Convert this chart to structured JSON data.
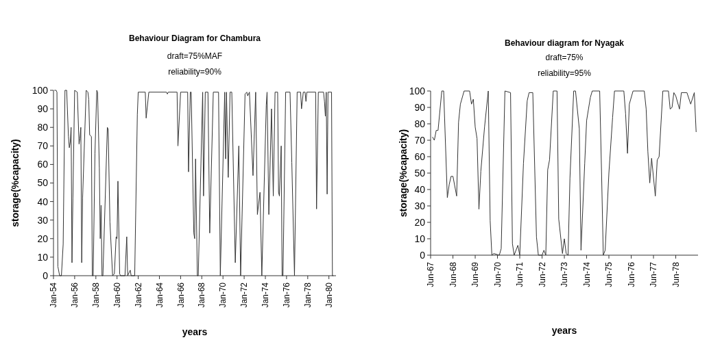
{
  "chart_data": [
    {
      "type": "line",
      "title": "Behaviour Diagram for Chambura",
      "subtitle": "draft=75%MAF\nreliability=90%",
      "xlabel": "years",
      "ylabel": "storage(%capacity)",
      "color": "#333333",
      "grid": false,
      "xlim": [
        "1954-01",
        "1980-09"
      ],
      "ylim": [
        0,
        100
      ],
      "yticks": [
        0,
        10,
        20,
        30,
        40,
        50,
        60,
        70,
        80,
        90,
        100
      ],
      "xticks": [
        {
          "value": "1954-01",
          "label": "Jan-54"
        },
        {
          "value": "1956-01",
          "label": "Jan-56"
        },
        {
          "value": "1958-01",
          "label": "Jan-58"
        },
        {
          "value": "1960-01",
          "label": "Jan-60"
        },
        {
          "value": "1962-01",
          "label": "Jan-62"
        },
        {
          "value": "1964-01",
          "label": "Jan-64"
        },
        {
          "value": "1966-01",
          "label": "Jan-66"
        },
        {
          "value": "1968-01",
          "label": "Jan-68"
        },
        {
          "value": "1970-01",
          "label": "Jan-70"
        },
        {
          "value": "1972-01",
          "label": "Jan-72"
        },
        {
          "value": "1974-01",
          "label": "Jan-74"
        },
        {
          "value": "1976-01",
          "label": "Jan-76"
        },
        {
          "value": "1978-01",
          "label": "Jan-78"
        },
        {
          "value": "1980-01",
          "label": "Jan-80"
        }
      ],
      "x": [
        "1954-02",
        "1954-04",
        "1954-05",
        "1954-06",
        "1954-08",
        "1954-10",
        "1954-12",
        "1955-02",
        "1955-04",
        "1955-06",
        "1955-07",
        "1955-08",
        "1955-09",
        "1955-10",
        "1955-11",
        "1956-01",
        "1956-04",
        "1956-06",
        "1956-07",
        "1956-08",
        "1956-09",
        "1956-10",
        "1957-02",
        "1957-04",
        "1957-05",
        "1957-06",
        "1957-08",
        "1957-09",
        "1957-10",
        "1957-12",
        "1958-02",
        "1958-03",
        "1958-05",
        "1958-06",
        "1958-07",
        "1958-08",
        "1958-09",
        "1959-02",
        "1959-03",
        "1959-05",
        "1959-08",
        "1959-10",
        "1959-12",
        "1960-01",
        "1960-02",
        "1960-04",
        "1960-05",
        "1960-10",
        "1960-12",
        "1961-01",
        "1961-04",
        "1961-05",
        "1961-09",
        "1961-12",
        "1962-01",
        "1962-09",
        "1962-10",
        "1963-01",
        "1964-09",
        "1964-10",
        "1964-11",
        "1965-09",
        "1965-10",
        "1966-01",
        "1966-09",
        "1966-10",
        "1966-12",
        "1967-01",
        "1967-04",
        "1967-05",
        "1967-06",
        "1967-08",
        "1967-09",
        "1968-02",
        "1968-03",
        "1968-05",
        "1968-08",
        "1968-10",
        "1969-02",
        "1969-08",
        "1969-10",
        "1970-03",
        "1970-04",
        "1970-05",
        "1970-07",
        "1970-09",
        "1970-11",
        "1971-03",
        "1971-07",
        "1971-09",
        "1972-02",
        "1972-04",
        "1972-05",
        "1972-07",
        "1972-11",
        "1973-02",
        "1973-04",
        "1973-07",
        "1973-09",
        "1974-02",
        "1974-03",
        "1974-05",
        "1974-08",
        "1974-10",
        "1974-12",
        "1975-03",
        "1975-04",
        "1975-05",
        "1975-07",
        "1975-08",
        "1975-09",
        "1975-12",
        "1976-05",
        "1976-07",
        "1976-10",
        "1977-01",
        "1977-05",
        "1977-06",
        "1977-08",
        "1977-10",
        "1977-11",
        "1977-12",
        "1978-10",
        "1978-11",
        "1979-01",
        "1979-07",
        "1979-08",
        "1979-09",
        "1979-10",
        "1979-11",
        "1979-12",
        "1980-04",
        "1980-05",
        "1980-06"
      ],
      "values": [
        100,
        100,
        99,
        5,
        0,
        0,
        17,
        100,
        100,
        75,
        69,
        72,
        80,
        7,
        42,
        100,
        99,
        71,
        74,
        80,
        7,
        42,
        100,
        99,
        95,
        76,
        75,
        0,
        0,
        66,
        100,
        99,
        58,
        20,
        38,
        0,
        0,
        80,
        79,
        29,
        0,
        1,
        21,
        20,
        51,
        1,
        0,
        0,
        21,
        0,
        3,
        0,
        0,
        87,
        99,
        99,
        85,
        99,
        99,
        98,
        99,
        99,
        70,
        99,
        99,
        56,
        99,
        99,
        23,
        20,
        63,
        0,
        0,
        99,
        43,
        99,
        99,
        23,
        99,
        99,
        0,
        99,
        63,
        99,
        53,
        99,
        99,
        7,
        70,
        0,
        98,
        99,
        97,
        99,
        54,
        99,
        33,
        45,
        0,
        92,
        99,
        33,
        90,
        43,
        99,
        99,
        45,
        43,
        70,
        0,
        0,
        99,
        99,
        61,
        0,
        99,
        99,
        90,
        99,
        99,
        94,
        99,
        99,
        36,
        99,
        99,
        94,
        86,
        99,
        44,
        99,
        99,
        0,
        0
      ]
    },
    {
      "type": "line",
      "title": "Behaviour diagram for Nyagak",
      "subtitle": "draft=75%\nreliability=95%",
      "xlabel": "years",
      "ylabel": "storage(%capacity)",
      "color": "#333333",
      "grid": false,
      "xlim": [
        "1967-06",
        "1979-06"
      ],
      "ylim": [
        0,
        100
      ],
      "yticks": [
        0,
        10,
        20,
        30,
        40,
        50,
        60,
        70,
        80,
        90,
        100
      ],
      "xticks": [
        {
          "value": "1967-06",
          "label": "Jun-67"
        },
        {
          "value": "1968-06",
          "label": "Jun-68"
        },
        {
          "value": "1969-06",
          "label": "Jun-69"
        },
        {
          "value": "1970-06",
          "label": "Jun-70"
        },
        {
          "value": "1971-06",
          "label": "Jun-71"
        },
        {
          "value": "1972-06",
          "label": "Jun-72"
        },
        {
          "value": "1973-06",
          "label": "Jun-73"
        },
        {
          "value": "1974-06",
          "label": "Jun-74"
        },
        {
          "value": "1975-06",
          "label": "Jun-75"
        },
        {
          "value": "1976-06",
          "label": "Jun-76"
        },
        {
          "value": "1977-06",
          "label": "Jun-77"
        },
        {
          "value": "1978-06",
          "label": "Jun-78"
        }
      ],
      "x": [
        "1967-07",
        "1967-08",
        "1967-09",
        "1967-10",
        "1967-12",
        "1968-01",
        "1968-03",
        "1968-04",
        "1968-05",
        "1968-06",
        "1968-08",
        "1968-09",
        "1968-10",
        "1968-12",
        "1969-03",
        "1969-04",
        "1969-05",
        "1969-06",
        "1969-07",
        "1969-08",
        "1969-09",
        "1969-11",
        "1970-01",
        "1970-02",
        "1970-03",
        "1970-04",
        "1970-07",
        "1970-08",
        "1970-10",
        "1971-01",
        "1971-02",
        "1971-03",
        "1971-05",
        "1971-06",
        "1971-08",
        "1971-10",
        "1971-11",
        "1972-01",
        "1972-03",
        "1972-04",
        "1972-06",
        "1972-07",
        "1972-08",
        "1972-09",
        "1972-10",
        "1972-12",
        "1973-02",
        "1973-03",
        "1973-05",
        "1973-06",
        "1973-07",
        "1973-08",
        "1973-09",
        "1973-11",
        "1973-12",
        "1974-02",
        "1974-03",
        "1974-05",
        "1974-06",
        "1974-08",
        "1974-09",
        "1975-01",
        "1975-02",
        "1975-03",
        "1975-04",
        "1975-06",
        "1975-08",
        "1975-09",
        "1976-02",
        "1976-03",
        "1976-04",
        "1976-05",
        "1976-07",
        "1977-01",
        "1977-02",
        "1977-03",
        "1977-04",
        "1977-05",
        "1977-07",
        "1977-08",
        "1977-09",
        "1977-11",
        "1978-02",
        "1978-03",
        "1978-04",
        "1978-05",
        "1978-06",
        "1978-08",
        "1978-09",
        "1978-12",
        "1979-02",
        "1979-04",
        "1979-05"
      ],
      "values": [
        72,
        70,
        76,
        76,
        100,
        100,
        35,
        43,
        48,
        48,
        36,
        81,
        92,
        100,
        100,
        92,
        95,
        78,
        71,
        28,
        51,
        78,
        100,
        21,
        0,
        1,
        0,
        4,
        100,
        99,
        7,
        0,
        6,
        0,
        56,
        94,
        99,
        99,
        11,
        0,
        0,
        3,
        0,
        52,
        58,
        100,
        100,
        22,
        1,
        10,
        1,
        0,
        47,
        100,
        100,
        77,
        3,
        56,
        82,
        96,
        100,
        100,
        50,
        0,
        3,
        50,
        84,
        100,
        100,
        86,
        62,
        92,
        100,
        100,
        89,
        63,
        44,
        59,
        36,
        58,
        60,
        100,
        100,
        89,
        90,
        99,
        97,
        89,
        99,
        99,
        92,
        99,
        75
      ]
    }
  ]
}
